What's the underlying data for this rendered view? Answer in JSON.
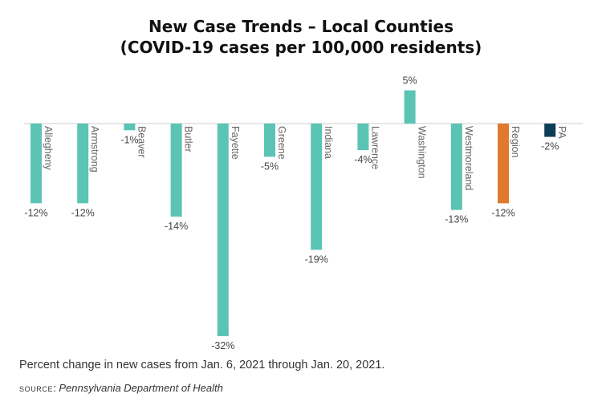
{
  "header": {
    "title_line1": "New Case Trends – Local Counties",
    "title_line2": "(COVID-19 cases per 100,000 residents)"
  },
  "footer": {
    "note": "Percent change in new cases from Jan. 6, 2021 through Jan. 20, 2021.",
    "source_label": "source",
    "source_sep": ": ",
    "source_text": "Pennsylvania Department of Health"
  },
  "colors": {
    "county": "#5bc4b4",
    "region": "#e07b2e",
    "state": "#0d3c55",
    "baseline": "#cccccc"
  },
  "chart_data": {
    "type": "bar",
    "title": "New Case Trends – Local Counties (COVID-19 cases per 100,000 residents)",
    "categories": [
      "Allegheny",
      "Armstrong",
      "Beaver",
      "Butler",
      "Fayette",
      "Greene",
      "Indiana",
      "Lawrence",
      "Washington",
      "Westmoreland",
      "Region",
      "PA"
    ],
    "values": [
      -12,
      -12,
      -1,
      -14,
      -32,
      -5,
      -19,
      -4,
      5,
      -13,
      -12,
      -2
    ],
    "value_labels": [
      "-12%",
      "-12%",
      "-1%",
      "-14%",
      "-32%",
      "-5%",
      "-19%",
      "-4%",
      "5%",
      "-13%",
      "-12%",
      "-2%"
    ],
    "groups": [
      "county",
      "county",
      "county",
      "county",
      "county",
      "county",
      "county",
      "county",
      "county",
      "county",
      "region",
      "state"
    ],
    "unit": "%",
    "ylim": [
      -33,
      5
    ],
    "grid": false,
    "legend": "none"
  }
}
